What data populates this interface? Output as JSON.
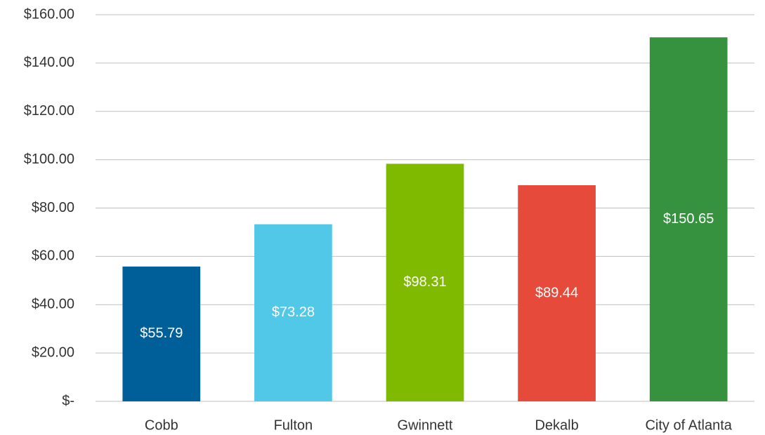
{
  "chart_data": {
    "type": "bar",
    "categories": [
      "Cobb",
      "Fulton",
      "Gwinnett",
      "Dekalb",
      "City of Atlanta"
    ],
    "values": [
      55.79,
      73.28,
      98.31,
      89.44,
      150.65
    ],
    "value_labels": [
      "$55.79",
      "$73.28",
      "$98.31",
      "$89.44",
      "$150.65"
    ],
    "colors": [
      "#005f99",
      "#52c8e8",
      "#7fba00",
      "#e64a3b",
      "#36923f"
    ],
    "ylim": [
      0,
      160
    ],
    "yticks": [
      {
        "value": 0,
        "label": "$-"
      },
      {
        "value": 20,
        "label": "$20.00"
      },
      {
        "value": 40,
        "label": "$40.00"
      },
      {
        "value": 60,
        "label": "$60.00"
      },
      {
        "value": 80,
        "label": "$80.00"
      },
      {
        "value": 100,
        "label": "$100.00"
      },
      {
        "value": 120,
        "label": "$120.00"
      },
      {
        "value": 140,
        "label": "$140.00"
      },
      {
        "value": 160,
        "label": "$160.00"
      }
    ],
    "grid": true
  }
}
